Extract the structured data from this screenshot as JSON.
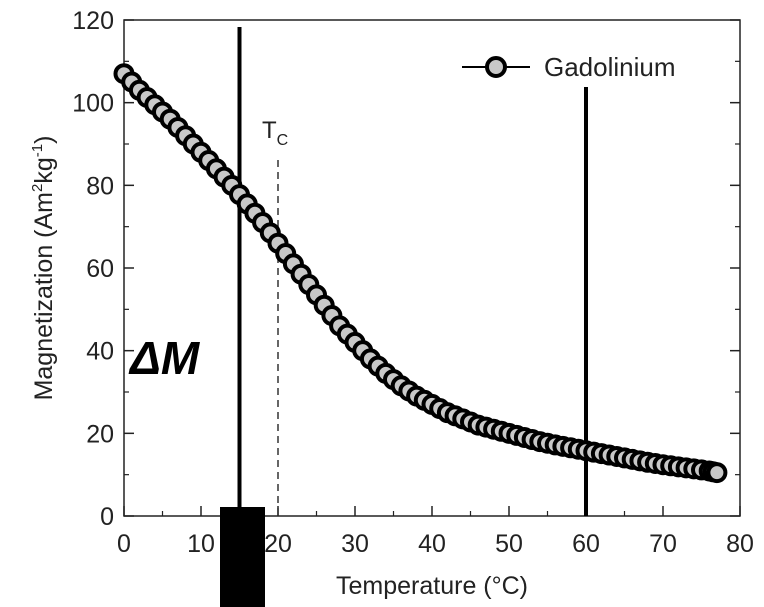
{
  "chart_data": {
    "type": "scatter",
    "title": "",
    "xlabel": "Temperature (°C)",
    "ylabel_parts": {
      "main": "Magnetization (Am",
      "sup1": "2",
      "mid": "kg",
      "sup2": "-1",
      "end": ")"
    },
    "xlim": [
      0,
      80
    ],
    "ylim": [
      0,
      120
    ],
    "x_ticks": [
      0,
      10,
      20,
      30,
      40,
      50,
      60,
      70,
      80
    ],
    "y_ticks": [
      0,
      20,
      40,
      60,
      80,
      100,
      120
    ],
    "grid": false,
    "legend": {
      "position": "top-right",
      "entries": [
        "Gadolinium"
      ]
    },
    "series": [
      {
        "name": "Gadolinium",
        "marker": "circle",
        "marker_fill": "#c8c8c8",
        "marker_edge": "#000000",
        "x": [
          0,
          2,
          4,
          6,
          8,
          10,
          12,
          14,
          16,
          18,
          20,
          22,
          24,
          26,
          28,
          30,
          32,
          34,
          36,
          38,
          40,
          42,
          44,
          46,
          48,
          50,
          52,
          54,
          56,
          58,
          60,
          62,
          64,
          66,
          68,
          70,
          72,
          74,
          76,
          77
        ],
        "y": [
          107,
          103,
          99.5,
          96,
          92,
          88,
          84,
          80,
          75.5,
          71,
          66,
          61,
          56,
          51,
          46,
          42,
          38,
          34.5,
          31.5,
          29,
          27,
          25,
          23.5,
          22,
          21,
          20,
          19,
          18,
          17.2,
          16.5,
          15.8,
          15.1,
          14.4,
          13.7,
          13,
          12.4,
          11.9,
          11.4,
          10.9,
          10.5
        ]
      }
    ],
    "annotations": {
      "tc_label": "T",
      "tc_sub": "C",
      "tc_x": 20,
      "delta_label": "ΔM",
      "vertical_lines": [
        {
          "x": 15,
          "style": "solid"
        },
        {
          "x": 60,
          "style": "solid"
        },
        {
          "x": 20,
          "style": "dashed"
        }
      ]
    }
  }
}
